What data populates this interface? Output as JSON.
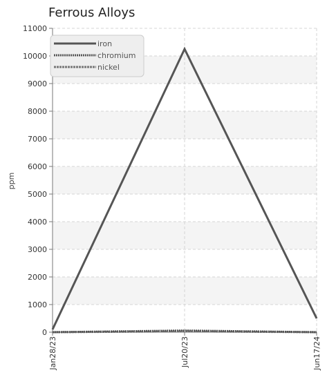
{
  "chart_data": {
    "type": "line",
    "title": "Ferrous Alloys",
    "xlabel": "",
    "ylabel": "ppm",
    "categories": [
      "Jan28/23",
      "Jul20/23",
      "Jun17/24"
    ],
    "ylim": [
      0,
      11000
    ],
    "y_ticks": [
      0,
      1000,
      2000,
      3000,
      4000,
      5000,
      6000,
      7000,
      8000,
      9000,
      10000,
      11000
    ],
    "grid": true,
    "legend_position": "top-left",
    "series": [
      {
        "name": "iron",
        "values": [
          100,
          10250,
          500
        ],
        "color": "#555555",
        "style": "solid"
      },
      {
        "name": "chromium",
        "values": [
          0,
          60,
          0
        ],
        "color": "#555555",
        "style": "dotted"
      },
      {
        "name": "nickel",
        "values": [
          0,
          30,
          0
        ],
        "color": "#777777",
        "style": "dashed"
      }
    ]
  }
}
